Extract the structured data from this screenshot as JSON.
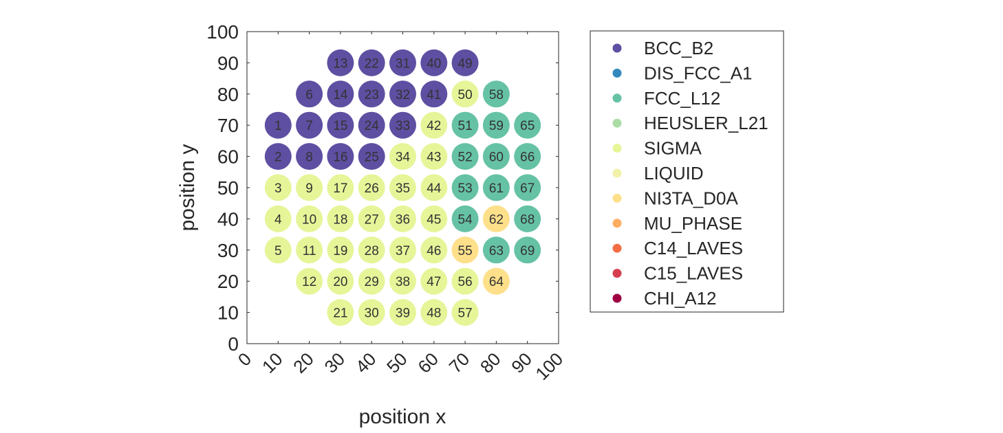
{
  "chart_data": {
    "type": "scatter",
    "xlabel": "position x",
    "ylabel": "position y",
    "xlim": [
      0,
      100
    ],
    "ylim": [
      0,
      100
    ],
    "xticks": [
      "0",
      "10",
      "20",
      "30",
      "40",
      "50",
      "60",
      "70",
      "80",
      "90",
      "100"
    ],
    "yticks": [
      "0",
      "10",
      "20",
      "30",
      "40",
      "50",
      "60",
      "70",
      "80",
      "90",
      "100"
    ],
    "grid": false,
    "legend_position": "outside-right",
    "phases": [
      {
        "name": "BCC_B2",
        "color": "#5e4fa2"
      },
      {
        "name": "DIS_FCC_A1",
        "color": "#3288bd"
      },
      {
        "name": "FCC_L12",
        "color": "#66c2a5"
      },
      {
        "name": "HEUSLER_L21",
        "color": "#abdda4"
      },
      {
        "name": "SIGMA",
        "color": "#e6f598"
      },
      {
        "name": "LIQUID",
        "color": "#f1f2a8"
      },
      {
        "name": "NI3TA_D0A",
        "color": "#fee08b"
      },
      {
        "name": "MU_PHASE",
        "color": "#fdae61"
      },
      {
        "name": "C14_LAVES",
        "color": "#f46d43"
      },
      {
        "name": "C15_LAVES",
        "color": "#d53e4f"
      },
      {
        "name": "CHI_A12",
        "color": "#9e0142"
      }
    ],
    "points": [
      {
        "id": "1",
        "x": 10,
        "y": 70,
        "phase": "BCC_B2"
      },
      {
        "id": "2",
        "x": 10,
        "y": 60,
        "phase": "BCC_B2"
      },
      {
        "id": "3",
        "x": 10,
        "y": 50,
        "phase": "SIGMA"
      },
      {
        "id": "4",
        "x": 10,
        "y": 40,
        "phase": "SIGMA"
      },
      {
        "id": "5",
        "x": 10,
        "y": 30,
        "phase": "SIGMA"
      },
      {
        "id": "6",
        "x": 20,
        "y": 80,
        "phase": "BCC_B2"
      },
      {
        "id": "7",
        "x": 20,
        "y": 70,
        "phase": "BCC_B2"
      },
      {
        "id": "8",
        "x": 20,
        "y": 60,
        "phase": "BCC_B2"
      },
      {
        "id": "9",
        "x": 20,
        "y": 50,
        "phase": "SIGMA"
      },
      {
        "id": "10",
        "x": 20,
        "y": 40,
        "phase": "SIGMA"
      },
      {
        "id": "11",
        "x": 20,
        "y": 30,
        "phase": "SIGMA"
      },
      {
        "id": "12",
        "x": 20,
        "y": 20,
        "phase": "SIGMA"
      },
      {
        "id": "13",
        "x": 30,
        "y": 90,
        "phase": "BCC_B2"
      },
      {
        "id": "14",
        "x": 30,
        "y": 80,
        "phase": "BCC_B2"
      },
      {
        "id": "15",
        "x": 30,
        "y": 70,
        "phase": "BCC_B2"
      },
      {
        "id": "16",
        "x": 30,
        "y": 60,
        "phase": "BCC_B2"
      },
      {
        "id": "17",
        "x": 30,
        "y": 50,
        "phase": "SIGMA"
      },
      {
        "id": "18",
        "x": 30,
        "y": 40,
        "phase": "SIGMA"
      },
      {
        "id": "19",
        "x": 30,
        "y": 30,
        "phase": "SIGMA"
      },
      {
        "id": "20",
        "x": 30,
        "y": 20,
        "phase": "SIGMA"
      },
      {
        "id": "21",
        "x": 30,
        "y": 10,
        "phase": "SIGMA"
      },
      {
        "id": "22",
        "x": 40,
        "y": 90,
        "phase": "BCC_B2"
      },
      {
        "id": "23",
        "x": 40,
        "y": 80,
        "phase": "BCC_B2"
      },
      {
        "id": "24",
        "x": 40,
        "y": 70,
        "phase": "BCC_B2"
      },
      {
        "id": "25",
        "x": 40,
        "y": 60,
        "phase": "BCC_B2"
      },
      {
        "id": "26",
        "x": 40,
        "y": 50,
        "phase": "SIGMA"
      },
      {
        "id": "27",
        "x": 40,
        "y": 40,
        "phase": "SIGMA"
      },
      {
        "id": "28",
        "x": 40,
        "y": 30,
        "phase": "SIGMA"
      },
      {
        "id": "29",
        "x": 40,
        "y": 20,
        "phase": "SIGMA"
      },
      {
        "id": "30",
        "x": 40,
        "y": 10,
        "phase": "SIGMA"
      },
      {
        "id": "31",
        "x": 50,
        "y": 90,
        "phase": "BCC_B2"
      },
      {
        "id": "32",
        "x": 50,
        "y": 80,
        "phase": "BCC_B2"
      },
      {
        "id": "33",
        "x": 50,
        "y": 70,
        "phase": "BCC_B2"
      },
      {
        "id": "34",
        "x": 50,
        "y": 60,
        "phase": "SIGMA"
      },
      {
        "id": "35",
        "x": 50,
        "y": 50,
        "phase": "SIGMA"
      },
      {
        "id": "36",
        "x": 50,
        "y": 40,
        "phase": "SIGMA"
      },
      {
        "id": "37",
        "x": 50,
        "y": 30,
        "phase": "SIGMA"
      },
      {
        "id": "38",
        "x": 50,
        "y": 20,
        "phase": "SIGMA"
      },
      {
        "id": "39",
        "x": 50,
        "y": 10,
        "phase": "SIGMA"
      },
      {
        "id": "40",
        "x": 60,
        "y": 90,
        "phase": "BCC_B2"
      },
      {
        "id": "41",
        "x": 60,
        "y": 80,
        "phase": "BCC_B2"
      },
      {
        "id": "42",
        "x": 60,
        "y": 70,
        "phase": "SIGMA"
      },
      {
        "id": "43",
        "x": 60,
        "y": 60,
        "phase": "SIGMA"
      },
      {
        "id": "44",
        "x": 60,
        "y": 50,
        "phase": "SIGMA"
      },
      {
        "id": "45",
        "x": 60,
        "y": 40,
        "phase": "SIGMA"
      },
      {
        "id": "46",
        "x": 60,
        "y": 30,
        "phase": "SIGMA"
      },
      {
        "id": "47",
        "x": 60,
        "y": 20,
        "phase": "SIGMA"
      },
      {
        "id": "48",
        "x": 60,
        "y": 10,
        "phase": "SIGMA"
      },
      {
        "id": "49",
        "x": 70,
        "y": 90,
        "phase": "BCC_B2"
      },
      {
        "id": "50",
        "x": 70,
        "y": 80,
        "phase": "SIGMA"
      },
      {
        "id": "51",
        "x": 70,
        "y": 70,
        "phase": "FCC_L12"
      },
      {
        "id": "52",
        "x": 70,
        "y": 60,
        "phase": "FCC_L12"
      },
      {
        "id": "53",
        "x": 70,
        "y": 50,
        "phase": "FCC_L12"
      },
      {
        "id": "54",
        "x": 70,
        "y": 40,
        "phase": "FCC_L12"
      },
      {
        "id": "55",
        "x": 70,
        "y": 30,
        "phase": "NI3TA_D0A"
      },
      {
        "id": "56",
        "x": 70,
        "y": 20,
        "phase": "SIGMA"
      },
      {
        "id": "57",
        "x": 70,
        "y": 10,
        "phase": "SIGMA"
      },
      {
        "id": "58",
        "x": 80,
        "y": 80,
        "phase": "FCC_L12"
      },
      {
        "id": "59",
        "x": 80,
        "y": 70,
        "phase": "FCC_L12"
      },
      {
        "id": "60",
        "x": 80,
        "y": 60,
        "phase": "FCC_L12"
      },
      {
        "id": "61",
        "x": 80,
        "y": 50,
        "phase": "FCC_L12"
      },
      {
        "id": "62",
        "x": 80,
        "y": 40,
        "phase": "NI3TA_D0A"
      },
      {
        "id": "63",
        "x": 80,
        "y": 30,
        "phase": "FCC_L12"
      },
      {
        "id": "64",
        "x": 80,
        "y": 20,
        "phase": "NI3TA_D0A"
      },
      {
        "id": "65",
        "x": 90,
        "y": 70,
        "phase": "FCC_L12"
      },
      {
        "id": "66",
        "x": 90,
        "y": 60,
        "phase": "FCC_L12"
      },
      {
        "id": "67",
        "x": 90,
        "y": 50,
        "phase": "FCC_L12"
      },
      {
        "id": "68",
        "x": 90,
        "y": 40,
        "phase": "FCC_L12"
      },
      {
        "id": "69",
        "x": 90,
        "y": 30,
        "phase": "FCC_L12"
      }
    ]
  }
}
